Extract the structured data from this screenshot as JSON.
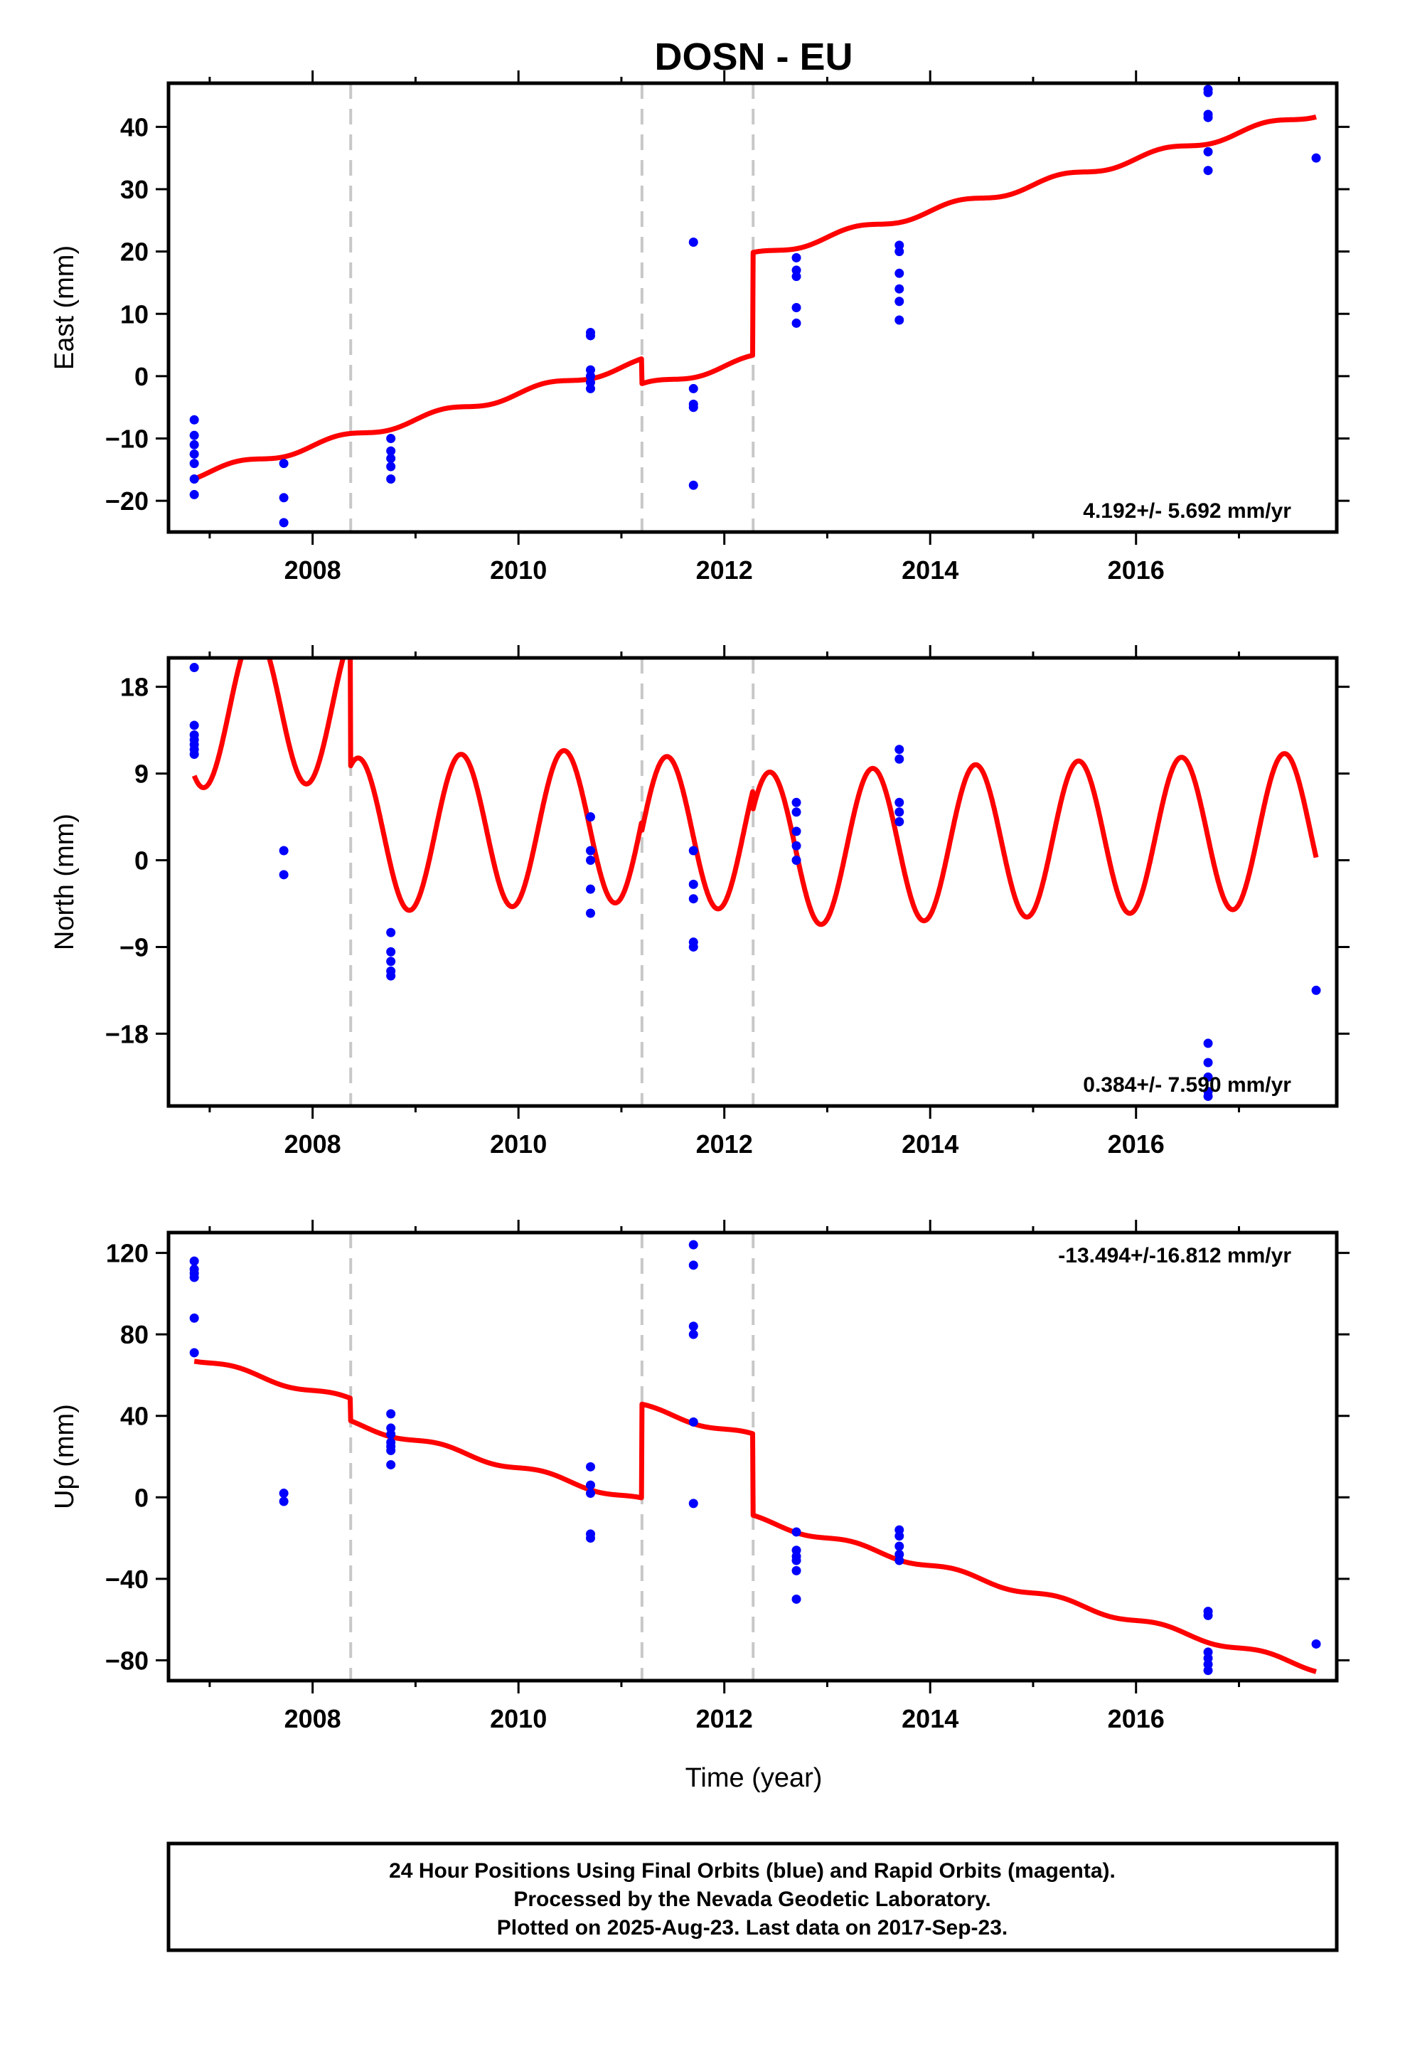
{
  "chart_data": {
    "type": "scatter",
    "title": "DOSN - EU",
    "xlabel": "Time (year)",
    "xlim": [
      2006.6,
      2017.95
    ],
    "x_ticks": [
      2008,
      2010,
      2012,
      2014,
      2016
    ],
    "grid": false,
    "breaks": [
      2008.37,
      2011.2,
      2012.28
    ],
    "panels": [
      {
        "name": "east",
        "ylabel": "East (mm)",
        "ylim": [
          -25,
          47
        ],
        "y_ticks": [
          40,
          30,
          20,
          10,
          0,
          -10,
          -20
        ],
        "y_tick_labels": [
          "40",
          "30",
          "20",
          "10",
          "0",
          "−10",
          "−20"
        ],
        "rate": "4.192+/- 5.692 mm/yr",
        "rate_position": "bottom-right",
        "model": {
          "color": "#ff0000",
          "start": -16,
          "slope": 4.192,
          "amp": 0.6,
          "phase": 0,
          "offsets": [
            {
              "year": 2008.37,
              "value": 0
            },
            {
              "year": 2011.2,
              "value": -4
            },
            {
              "year": 2012.28,
              "value": 16.5
            }
          ],
          "end": 2017.75
        },
        "points": [
          [
            2006.85,
            -7
          ],
          [
            2006.85,
            -9.5
          ],
          [
            2006.85,
            -11
          ],
          [
            2006.85,
            -12.5
          ],
          [
            2006.85,
            -14
          ],
          [
            2006.85,
            -16.5
          ],
          [
            2006.85,
            -19
          ],
          [
            2007.72,
            -14
          ],
          [
            2007.72,
            -19.5
          ],
          [
            2007.72,
            -23.5
          ],
          [
            2008.76,
            -10
          ],
          [
            2008.76,
            -12
          ],
          [
            2008.76,
            -13.2
          ],
          [
            2008.76,
            -14.5
          ],
          [
            2008.76,
            -16.5
          ],
          [
            2010.7,
            7
          ],
          [
            2010.7,
            6.5
          ],
          [
            2010.7,
            1
          ],
          [
            2010.7,
            0
          ],
          [
            2010.7,
            -1
          ],
          [
            2010.7,
            -2
          ],
          [
            2011.7,
            21.5
          ],
          [
            2011.7,
            -2
          ],
          [
            2011.7,
            -4.5
          ],
          [
            2011.7,
            -5
          ],
          [
            2011.7,
            -17.5
          ],
          [
            2012.7,
            19
          ],
          [
            2012.7,
            17
          ],
          [
            2012.7,
            16
          ],
          [
            2012.7,
            11
          ],
          [
            2012.7,
            8.5
          ],
          [
            2013.7,
            21
          ],
          [
            2013.7,
            20
          ],
          [
            2013.7,
            16.5
          ],
          [
            2013.7,
            14
          ],
          [
            2013.7,
            12
          ],
          [
            2013.7,
            9
          ],
          [
            2016.7,
            46
          ],
          [
            2016.7,
            45.5
          ],
          [
            2016.7,
            42
          ],
          [
            2016.7,
            41.5
          ],
          [
            2016.7,
            36
          ],
          [
            2016.7,
            33
          ],
          [
            2017.75,
            35
          ]
        ]
      },
      {
        "name": "north",
        "ylabel": "North (mm)",
        "ylim": [
          -25.5,
          21
        ],
        "y_ticks": [
          18,
          9,
          0,
          -9,
          -18
        ],
        "y_tick_labels": [
          "18",
          "9",
          "0",
          "−9",
          "−18"
        ],
        "rate": "0.384+/- 7.590 mm/yr",
        "rate_position": "bottom-right",
        "model": {
          "color": "#ff0000",
          "start": 15.5,
          "slope": 0.384,
          "amp": 8,
          "phase": -1.2,
          "offsets": [
            {
              "year": 2008.37,
              "value": -13.5
            },
            {
              "year": 2011.2,
              "value": -1
            },
            {
              "year": 2012.28,
              "value": -2
            }
          ],
          "end": 2017.75
        },
        "points": [
          [
            2006.85,
            20
          ],
          [
            2006.85,
            14
          ],
          [
            2006.85,
            13
          ],
          [
            2006.85,
            12.5
          ],
          [
            2006.85,
            12
          ],
          [
            2006.85,
            11.5
          ],
          [
            2006.85,
            11
          ],
          [
            2007.72,
            1
          ],
          [
            2007.72,
            -1.5
          ],
          [
            2008.76,
            -7.5
          ],
          [
            2008.76,
            -9.5
          ],
          [
            2008.76,
            -10.5
          ],
          [
            2008.76,
            -11.5
          ],
          [
            2008.76,
            -12
          ],
          [
            2010.7,
            4.5
          ],
          [
            2010.7,
            1
          ],
          [
            2010.7,
            0
          ],
          [
            2010.7,
            -3
          ],
          [
            2010.7,
            -5.5
          ],
          [
            2011.7,
            1
          ],
          [
            2011.7,
            -2.5
          ],
          [
            2011.7,
            -4
          ],
          [
            2011.7,
            -8.5
          ],
          [
            2011.7,
            -9
          ],
          [
            2012.7,
            6
          ],
          [
            2012.7,
            5
          ],
          [
            2012.7,
            3
          ],
          [
            2012.7,
            1.5
          ],
          [
            2012.7,
            0
          ],
          [
            2013.7,
            11.5
          ],
          [
            2013.7,
            10.5
          ],
          [
            2013.7,
            6
          ],
          [
            2013.7,
            5
          ],
          [
            2013.7,
            4
          ],
          [
            2016.7,
            -19
          ],
          [
            2016.7,
            -21
          ],
          [
            2016.7,
            -22.5
          ],
          [
            2016.7,
            -24
          ],
          [
            2016.7,
            -24.5
          ],
          [
            2017.75,
            -13.5
          ]
        ]
      },
      {
        "name": "up",
        "ylabel": "Up (mm)",
        "ylim": [
          -90,
          130
        ],
        "y_ticks": [
          120,
          80,
          40,
          0,
          -40,
          -80
        ],
        "y_tick_labels": [
          "120",
          "80",
          "40",
          "0",
          "−40",
          "−80"
        ],
        "rate": "-13.494+/-16.812 mm/yr",
        "rate_position": "top-right",
        "model": {
          "color": "#ff0000",
          "start": 68,
          "slope": -13.494,
          "amp": 1.5,
          "phase": 0,
          "offsets": [
            {
              "year": 2008.37,
              "value": -11
            },
            {
              "year": 2011.2,
              "value": 46
            },
            {
              "year": 2012.28,
              "value": -40
            }
          ],
          "end": 2017.75
        },
        "points": [
          [
            2006.85,
            116
          ],
          [
            2006.85,
            112
          ],
          [
            2006.85,
            110
          ],
          [
            2006.85,
            108
          ],
          [
            2006.85,
            88
          ],
          [
            2006.85,
            71
          ],
          [
            2007.72,
            2
          ],
          [
            2007.72,
            -2
          ],
          [
            2008.76,
            41
          ],
          [
            2008.76,
            34
          ],
          [
            2008.76,
            31
          ],
          [
            2008.76,
            27
          ],
          [
            2008.76,
            25
          ],
          [
            2008.76,
            23
          ],
          [
            2008.76,
            16
          ],
          [
            2010.7,
            15
          ],
          [
            2010.7,
            6
          ],
          [
            2010.7,
            2
          ],
          [
            2010.7,
            -18
          ],
          [
            2010.7,
            -20
          ],
          [
            2011.7,
            124
          ],
          [
            2011.7,
            114
          ],
          [
            2011.7,
            84
          ],
          [
            2011.7,
            80
          ],
          [
            2011.7,
            37
          ],
          [
            2011.7,
            -3
          ],
          [
            2012.7,
            -17
          ],
          [
            2012.7,
            -26
          ],
          [
            2012.7,
            -29
          ],
          [
            2012.7,
            -31
          ],
          [
            2012.7,
            -36
          ],
          [
            2012.7,
            -50
          ],
          [
            2013.7,
            -16
          ],
          [
            2013.7,
            -19
          ],
          [
            2013.7,
            -24
          ],
          [
            2013.7,
            -28
          ],
          [
            2013.7,
            -31
          ],
          [
            2016.7,
            -56
          ],
          [
            2016.7,
            -58
          ],
          [
            2016.7,
            -76
          ],
          [
            2016.7,
            -79
          ],
          [
            2016.7,
            -82
          ],
          [
            2016.7,
            -85
          ],
          [
            2017.75,
            -72
          ]
        ]
      }
    ],
    "footer_lines": [
      "24 Hour Positions Using Final Orbits (blue) and Rapid Orbits (magenta).",
      "Processed by the Nevada Geodetic Laboratory.",
      "Plotted on 2025-Aug-23. Last data on 2017-Sep-23."
    ]
  },
  "colors": {
    "final_orbits": "#0000ff",
    "model": "#ff0000",
    "breaks": "#c8c8c8",
    "frame": "#000000"
  }
}
